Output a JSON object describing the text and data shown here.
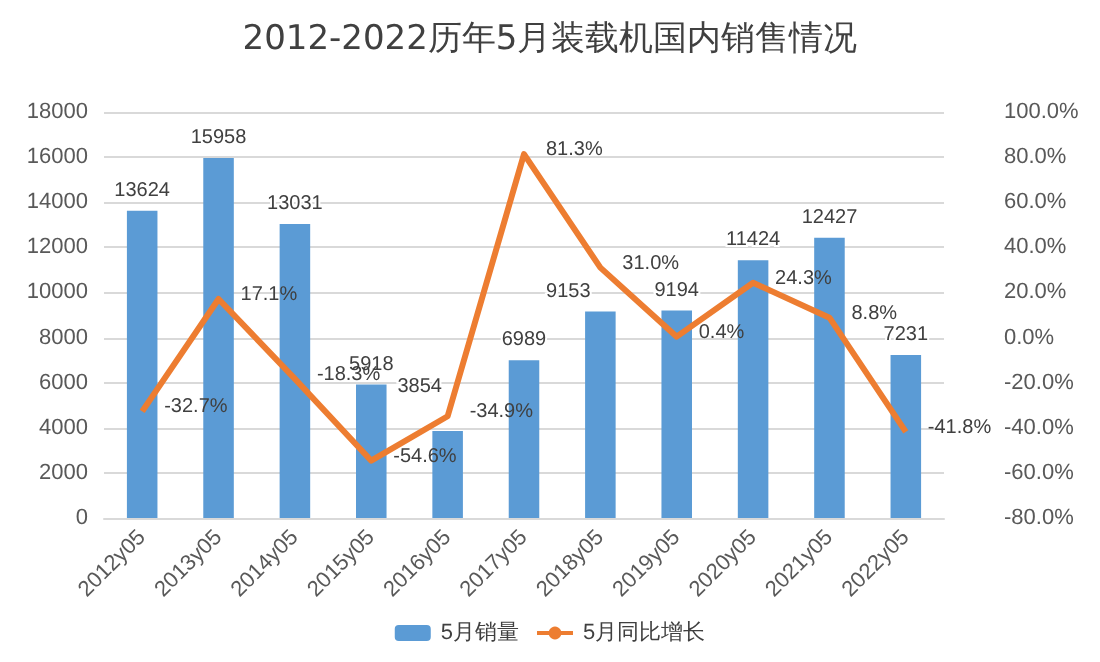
{
  "chart_data": {
    "type": "bar",
    "title": "2012-2022历年5月装载机国内销售情况",
    "categories": [
      "2012y05",
      "2013y05",
      "2014y05",
      "2015y05",
      "2016y05",
      "2017y05",
      "2018y05",
      "2019y05",
      "2020y05",
      "2021y05",
      "2022y05"
    ],
    "series": [
      {
        "name": "5月销量",
        "color": "#5b9bd5",
        "values": [
          13624,
          15958,
          13031,
          5918,
          3854,
          6989,
          9153,
          9194,
          11424,
          12427,
          7231
        ],
        "value_labels": [
          "13624",
          "15958",
          "13031",
          "5918",
          "3854",
          "6989",
          "9153",
          "9194",
          "11424",
          "12427",
          "7231"
        ]
      },
      {
        "name": "5月同比增长",
        "type": "line",
        "axis": "y2",
        "color": "#ed7d31",
        "values": [
          -32.7,
          17.1,
          -18.3,
          -54.6,
          -34.9,
          81.3,
          31.0,
          0.4,
          24.3,
          8.8,
          -41.8
        ],
        "value_labels": [
          "-32.7%",
          "17.1%",
          "-18.3%",
          "-54.6%",
          "-34.9%",
          "81.3%",
          "31.0%",
          "0.4%",
          "24.3%",
          "8.8%",
          "-41.8%"
        ]
      }
    ],
    "ylim": [
      0,
      18000
    ],
    "yticks": [
      0,
      2000,
      4000,
      6000,
      8000,
      10000,
      12000,
      14000,
      16000,
      18000
    ],
    "y2lim": [
      -80,
      100
    ],
    "y2ticks": [
      {
        "value": -80,
        "label": "-80.0%"
      },
      {
        "value": -60,
        "label": "-60.0%"
      },
      {
        "value": -40,
        "label": "-40.0%"
      },
      {
        "value": -20,
        "label": "-20.0%"
      },
      {
        "value": 0,
        "label": "0.0%"
      },
      {
        "value": 20,
        "label": "20.0%"
      },
      {
        "value": 40,
        "label": "40.0%"
      },
      {
        "value": 60,
        "label": "60.0%"
      },
      {
        "value": 80,
        "label": "80.0%"
      },
      {
        "value": 100,
        "label": "100.0%"
      }
    ],
    "grid": "y",
    "legend": "bottom",
    "marker": "none"
  }
}
